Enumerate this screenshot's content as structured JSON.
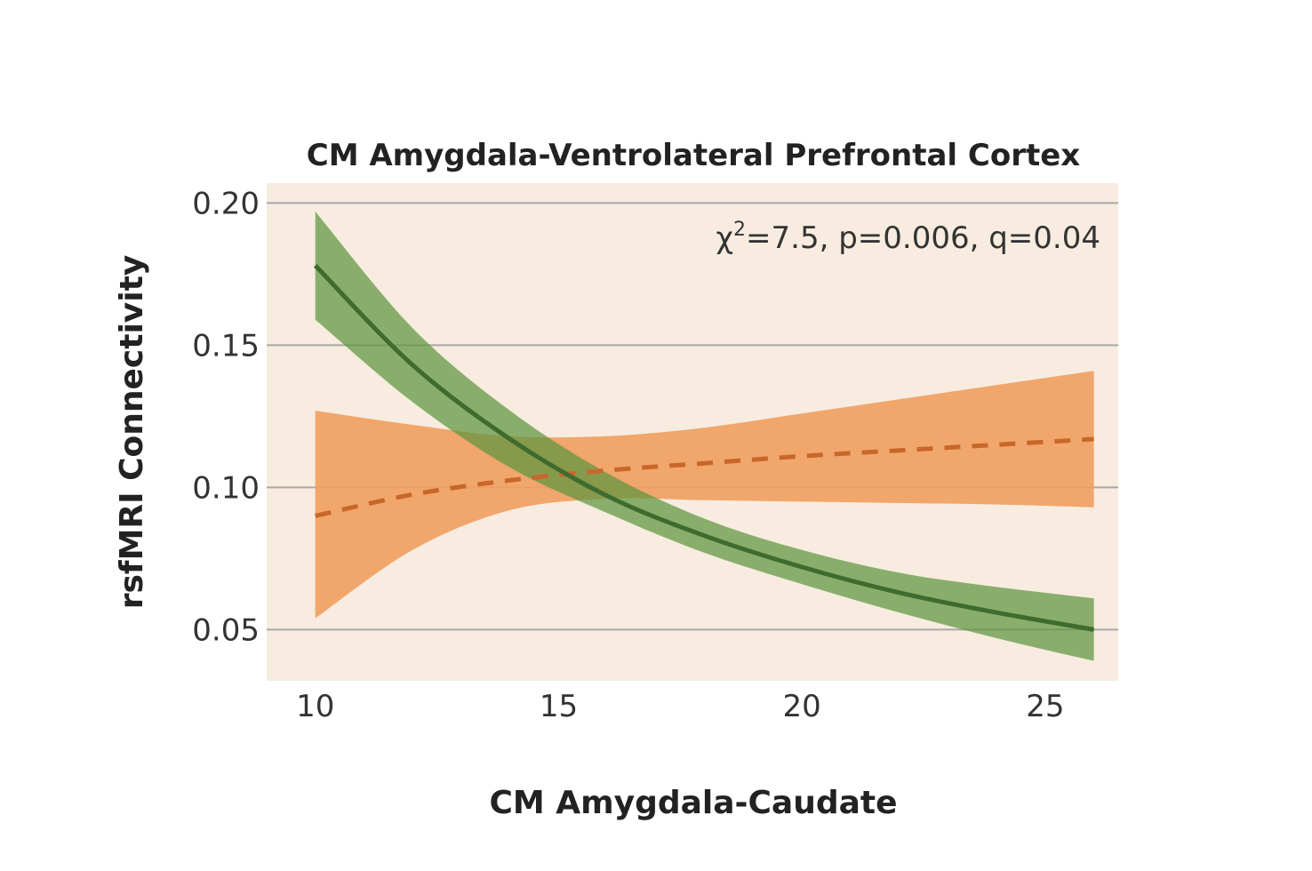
{
  "chart_data": {
    "type": "line",
    "title": "CM Amygdala-Ventrolateral Prefrontal Cortex",
    "xlabel": "CM Amygdala-Caudate",
    "ylabel": "rsfMRI Connectivity",
    "annotation": {
      "chi": "χ",
      "sup": "2",
      "rest": "=7.5, p=0.006, q=0.04"
    },
    "xlim": [
      9,
      26.5
    ],
    "ylim": [
      0.032,
      0.207
    ],
    "x_ticks": [
      10,
      15,
      20,
      25
    ],
    "x_tick_labels": [
      "10",
      "15",
      "20",
      "25"
    ],
    "y_ticks": [
      0.05,
      0.1,
      0.15,
      0.2
    ],
    "y_tick_labels": [
      "0.05",
      "0.10",
      "0.15",
      "0.20"
    ],
    "grid": "horizontal",
    "colors": {
      "plot_bg": "#f7ecdf",
      "grid": "#a9a9a9",
      "green_line": "#3f6b2e",
      "green_band": "#5e9640",
      "orange_line": "#c8672a",
      "orange_band": "#ef9f5f"
    },
    "series": [
      {
        "style": "dashed",
        "x": [
          10,
          12,
          14,
          16,
          18,
          20,
          22,
          24,
          26
        ],
        "y": [
          0.09,
          0.0975,
          0.1025,
          0.106,
          0.1085,
          0.111,
          0.113,
          0.115,
          0.117
        ],
        "lower": [
          0.054,
          0.078,
          0.092,
          0.096,
          0.0955,
          0.095,
          0.0945,
          0.094,
          0.093
        ],
        "upper": [
          0.127,
          0.122,
          0.118,
          0.118,
          0.121,
          0.126,
          0.131,
          0.136,
          0.141
        ]
      },
      {
        "style": "solid",
        "x": [
          10,
          12,
          14,
          16,
          18,
          20,
          22,
          24,
          26
        ],
        "y": [
          0.178,
          0.143,
          0.117,
          0.097,
          0.083,
          0.072,
          0.063,
          0.056,
          0.05
        ],
        "lower": [
          0.159,
          0.13,
          0.107,
          0.091,
          0.077,
          0.066,
          0.056,
          0.047,
          0.039
        ],
        "upper": [
          0.197,
          0.156,
          0.127,
          0.105,
          0.089,
          0.078,
          0.07,
          0.065,
          0.061
        ]
      }
    ]
  }
}
